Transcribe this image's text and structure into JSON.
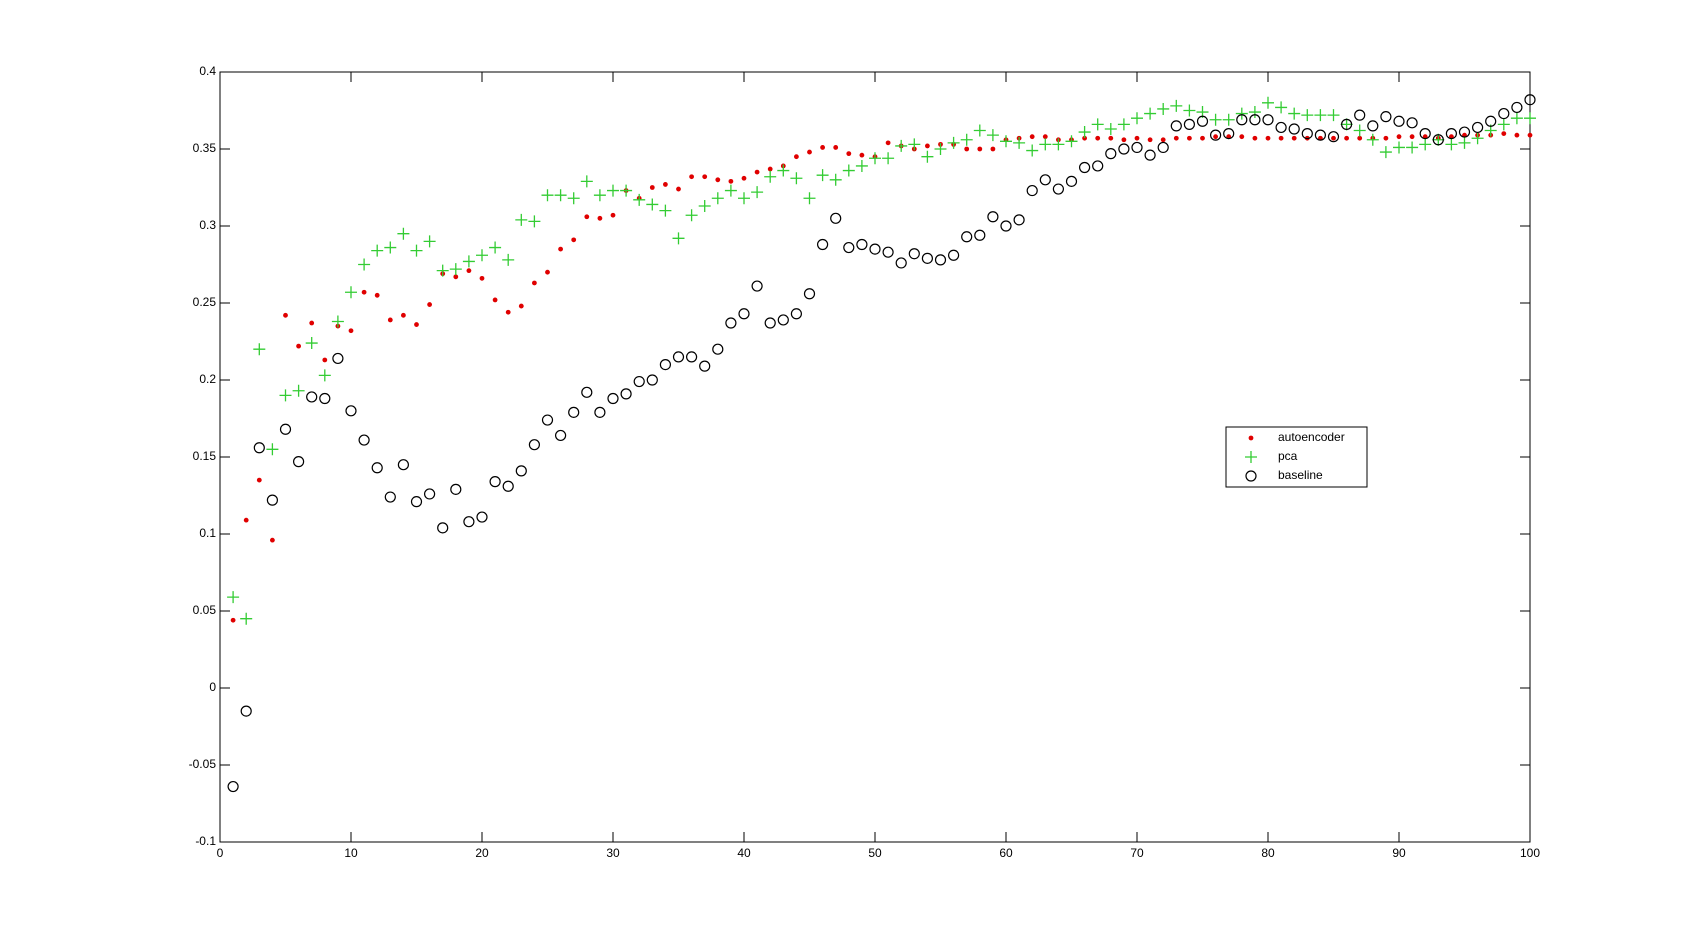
{
  "chart_data": {
    "type": "scatter",
    "x": [
      1,
      2,
      3,
      4,
      5,
      6,
      7,
      8,
      9,
      10,
      11,
      12,
      13,
      14,
      15,
      16,
      17,
      18,
      19,
      20,
      21,
      22,
      23,
      24,
      25,
      26,
      27,
      28,
      29,
      30,
      31,
      32,
      33,
      34,
      35,
      36,
      37,
      38,
      39,
      40,
      41,
      42,
      43,
      44,
      45,
      46,
      47,
      48,
      49,
      50,
      51,
      52,
      53,
      54,
      55,
      56,
      57,
      58,
      59,
      60,
      61,
      62,
      63,
      64,
      65,
      66,
      67,
      68,
      69,
      70,
      71,
      72,
      73,
      74,
      75,
      76,
      77,
      78,
      79,
      80,
      81,
      82,
      83,
      84,
      85,
      86,
      87,
      88,
      89,
      90,
      91,
      92,
      93,
      94,
      95,
      96,
      97,
      98,
      99,
      100
    ],
    "series": [
      {
        "name": "autoencoder",
        "color": "#e00000",
        "marker": ".",
        "values": [
          0.044,
          0.109,
          0.135,
          0.096,
          0.242,
          0.222,
          0.237,
          0.213,
          0.235,
          0.232,
          0.257,
          0.255,
          0.239,
          0.242,
          0.236,
          0.249,
          0.269,
          0.267,
          0.271,
          0.266,
          0.252,
          0.244,
          0.248,
          0.263,
          0.27,
          0.285,
          0.291,
          0.306,
          0.305,
          0.307,
          0.323,
          0.318,
          0.325,
          0.327,
          0.324,
          0.332,
          0.332,
          0.33,
          0.329,
          0.331,
          0.335,
          0.337,
          0.339,
          0.345,
          0.348,
          0.351,
          0.351,
          0.347,
          0.346,
          0.345,
          0.354,
          0.352,
          0.35,
          0.352,
          0.353,
          0.353,
          0.35,
          0.35,
          0.35,
          0.356,
          0.357,
          0.358,
          0.358,
          0.356,
          0.356,
          0.357,
          0.357,
          0.357,
          0.356,
          0.357,
          0.356,
          0.356,
          0.357,
          0.357,
          0.357,
          0.358,
          0.358,
          0.358,
          0.357,
          0.357,
          0.357,
          0.357,
          0.357,
          0.357,
          0.357,
          0.357,
          0.357,
          0.357,
          0.357,
          0.358,
          0.358,
          0.358,
          0.357,
          0.358,
          0.359,
          0.359,
          0.359,
          0.36,
          0.359,
          0.359
        ]
      },
      {
        "name": "pca",
        "color": "#33cc33",
        "marker": "+",
        "values": [
          0.059,
          0.045,
          0.22,
          0.155,
          0.19,
          0.193,
          0.224,
          0.203,
          0.238,
          0.257,
          0.275,
          0.284,
          0.286,
          0.295,
          0.284,
          0.29,
          0.271,
          0.272,
          0.277,
          0.281,
          0.286,
          0.278,
          0.304,
          0.303,
          0.32,
          0.32,
          0.318,
          0.329,
          0.32,
          0.323,
          0.323,
          0.317,
          0.314,
          0.31,
          0.292,
          0.307,
          0.313,
          0.318,
          0.323,
          0.318,
          0.322,
          0.332,
          0.336,
          0.331,
          0.318,
          0.333,
          0.33,
          0.336,
          0.339,
          0.344,
          0.344,
          0.352,
          0.353,
          0.345,
          0.35,
          0.354,
          0.356,
          0.362,
          0.359,
          0.355,
          0.354,
          0.349,
          0.353,
          0.353,
          0.355,
          0.361,
          0.366,
          0.363,
          0.366,
          0.37,
          0.373,
          0.376,
          0.378,
          0.375,
          0.374,
          0.369,
          0.369,
          0.373,
          0.374,
          0.38,
          0.377,
          0.373,
          0.372,
          0.372,
          0.372,
          0.366,
          0.362,
          0.356,
          0.348,
          0.351,
          0.351,
          0.353,
          0.356,
          0.353,
          0.354,
          0.357,
          0.362,
          0.366,
          0.37,
          0.37
        ]
      },
      {
        "name": "baseline",
        "color": "#000000",
        "marker": "o",
        "values": [
          -0.064,
          -0.015,
          0.156,
          0.122,
          0.168,
          0.147,
          0.189,
          0.188,
          0.214,
          0.18,
          0.161,
          0.143,
          0.124,
          0.145,
          0.121,
          0.126,
          0.104,
          0.129,
          0.108,
          0.111,
          0.134,
          0.131,
          0.141,
          0.158,
          0.174,
          0.164,
          0.179,
          0.192,
          0.179,
          0.188,
          0.191,
          0.199,
          0.2,
          0.21,
          0.215,
          0.215,
          0.209,
          0.22,
          0.237,
          0.243,
          0.261,
          0.237,
          0.239,
          0.243,
          0.256,
          0.288,
          0.305,
          0.286,
          0.288,
          0.285,
          0.283,
          0.276,
          0.282,
          0.279,
          0.278,
          0.281,
          0.293,
          0.294,
          0.306,
          0.3,
          0.304,
          0.323,
          0.33,
          0.324,
          0.329,
          0.338,
          0.339,
          0.347,
          0.35,
          0.351,
          0.346,
          0.351,
          0.365,
          0.366,
          0.368,
          0.359,
          0.36,
          0.369,
          0.369,
          0.369,
          0.364,
          0.363,
          0.36,
          0.359,
          0.358,
          0.366,
          0.372,
          0.365,
          0.371,
          0.368,
          0.367,
          0.36,
          0.356,
          0.36,
          0.361,
          0.364,
          0.368,
          0.373,
          0.377,
          0.382
        ]
      }
    ],
    "xlim": [
      0,
      100
    ],
    "xticks": [
      0,
      10,
      20,
      30,
      40,
      50,
      60,
      70,
      80,
      90,
      100
    ],
    "ylim": [
      -0.1,
      0.4
    ],
    "yticks": [
      -0.1,
      -0.05,
      0,
      0.05,
      0.1,
      0.15,
      0.2,
      0.25,
      0.3,
      0.35,
      0.4
    ],
    "grid": false,
    "legend": "east"
  }
}
